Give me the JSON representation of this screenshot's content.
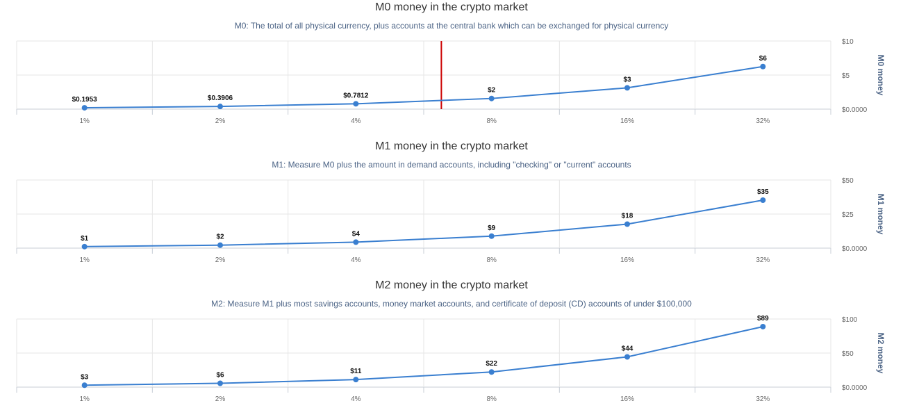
{
  "chart_data": [
    {
      "type": "line",
      "title": "M0 money in the crypto market",
      "subtitle": "M0: The total of all physical currency, plus accounts at the central bank which can be exchanged for physical currency",
      "ylabel": "M0 money",
      "categories": [
        "1%",
        "2%",
        "4%",
        "8%",
        "16%",
        "32%"
      ],
      "values": [
        0.1953,
        0.3906,
        0.7812,
        1.5625,
        3.125,
        6.25
      ],
      "data_labels": [
        "$0.1953",
        "$0.3906",
        "$0.7812",
        "$2",
        "$3",
        "$6"
      ],
      "ylim": [
        0,
        10
      ],
      "yticks": [
        {
          "value": 0,
          "label": "$0.0000"
        },
        {
          "value": 5,
          "label": "$5"
        },
        {
          "value": 10,
          "label": "$10"
        }
      ],
      "y_axis_side": "right",
      "grid": true,
      "series_color": "#3a7fd0",
      "marker": {
        "category_position": 3.13,
        "color": "#cc0000"
      }
    },
    {
      "type": "line",
      "title": "M1 money in the crypto market",
      "subtitle": "M1: Measure M0 plus the amount in demand accounts, including \"checking\" or \"current\" accounts",
      "ylabel": "M1 money",
      "categories": [
        "1%",
        "2%",
        "4%",
        "8%",
        "16%",
        "32%"
      ],
      "values": [
        1.1,
        2.2,
        4.4,
        8.8,
        17.6,
        35.2
      ],
      "data_labels": [
        "$1",
        "$2",
        "$4",
        "$9",
        "$18",
        "$35"
      ],
      "ylim": [
        0,
        50
      ],
      "yticks": [
        {
          "value": 0,
          "label": "$0.0000"
        },
        {
          "value": 25,
          "label": "$25"
        },
        {
          "value": 50,
          "label": "$50"
        }
      ],
      "y_axis_side": "right",
      "grid": true,
      "series_color": "#3a7fd0"
    },
    {
      "type": "line",
      "title": "M2 money in the crypto market",
      "subtitle": "M2: Measure M1 plus most savings accounts, money market accounts, and certificate of deposit (CD) accounts of under $100,000",
      "ylabel": "M2 money",
      "categories": [
        "1%",
        "2%",
        "4%",
        "8%",
        "16%",
        "32%"
      ],
      "values": [
        2.8,
        5.6,
        11.1,
        22.2,
        44.4,
        88.8
      ],
      "data_labels": [
        "$3",
        "$6",
        "$11",
        "$22",
        "$44",
        "$89"
      ],
      "ylim": [
        0,
        100
      ],
      "yticks": [
        {
          "value": 0,
          "label": "$0.0000"
        },
        {
          "value": 50,
          "label": "$50"
        },
        {
          "value": 100,
          "label": "$100"
        }
      ],
      "y_axis_side": "right",
      "grid": true,
      "series_color": "#3a7fd0"
    }
  ]
}
